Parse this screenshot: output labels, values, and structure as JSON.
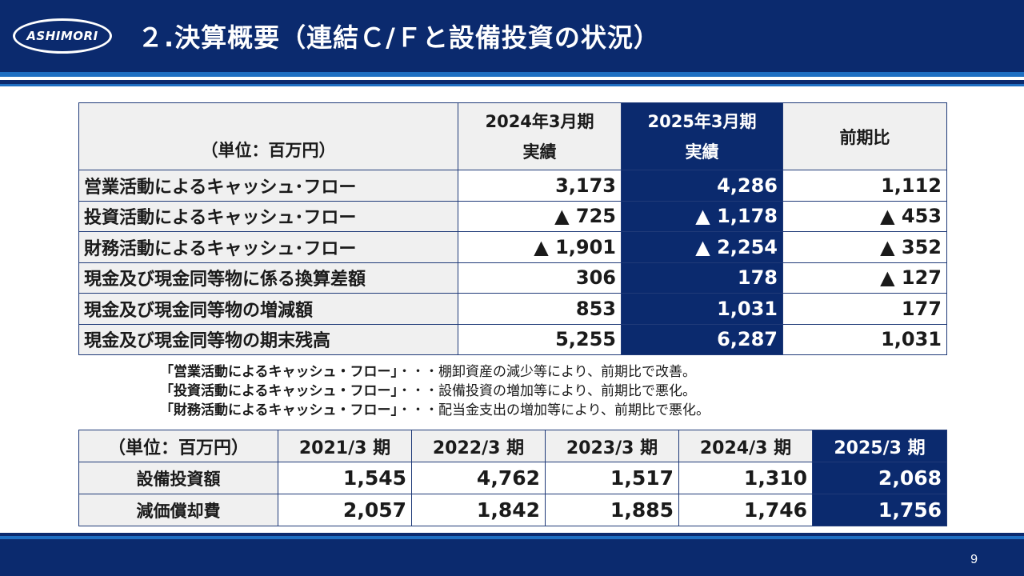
{
  "header": {
    "logo_text": "ASHIMORI",
    "title": "２.決算概要（連結Ｃ/Ｆと設備投資の状況）"
  },
  "cf_table": {
    "unit": "（単位：百万円）",
    "col_2024_line1": "2024年3月期",
    "col_2024_line2": "実績",
    "col_2025_line1": "2025年3月期",
    "col_2025_line2": "実績",
    "col_diff": "前期比",
    "rows": [
      {
        "label": "営業活動によるキャッシュ･フロー",
        "v2024": "3,173",
        "v2025": "4,286",
        "diff": "1,112"
      },
      {
        "label": "投資活動によるキャッシュ･フロー",
        "v2024": "▲ 725",
        "v2025": "▲ 1,178",
        "diff": "▲ 453"
      },
      {
        "label": "財務活動によるキャッシュ･フロー",
        "v2024": "▲ 1,901",
        "v2025": "▲ 2,254",
        "diff": "▲ 352"
      },
      {
        "label": "現金及び現金同等物に係る換算差額",
        "v2024": "306",
        "v2025": "178",
        "diff": "▲ 127"
      },
      {
        "label": "現金及び現金同等物の増減額",
        "v2024": "853",
        "v2025": "1,031",
        "diff": "177"
      },
      {
        "label": "現金及び現金同等物の期末残高",
        "v2024": "5,255",
        "v2025": "6,287",
        "diff": "1,031"
      }
    ]
  },
  "notes": [
    {
      "quote": "「営業活動によるキャッシュ・フロー」",
      "desc": "・・・棚卸資産の減少等により、前期比で改善。"
    },
    {
      "quote": "「投資活動によるキャッシュ・フロー」",
      "desc": "・・・設備投資の増加等により、前期比で悪化。"
    },
    {
      "quote": "「財務活動によるキャッシュ・フロー」",
      "desc": "・・・配当金支出の増加等により、前期比で悪化。"
    }
  ],
  "capex_table": {
    "unit": "（単位：百万円）",
    "years": [
      "2021/3 期",
      "2022/3 期",
      "2023/3 期",
      "2024/3 期",
      "2025/3 期"
    ],
    "rows": [
      {
        "label": "設備投資額",
        "values": [
          "1,545",
          "4,762",
          "1,517",
          "1,310",
          "2,068"
        ]
      },
      {
        "label": "減価償却費",
        "values": [
          "2,057",
          "1,842",
          "1,885",
          "1,746",
          "1,756"
        ]
      }
    ]
  },
  "footer": {
    "page_number": "9"
  }
}
